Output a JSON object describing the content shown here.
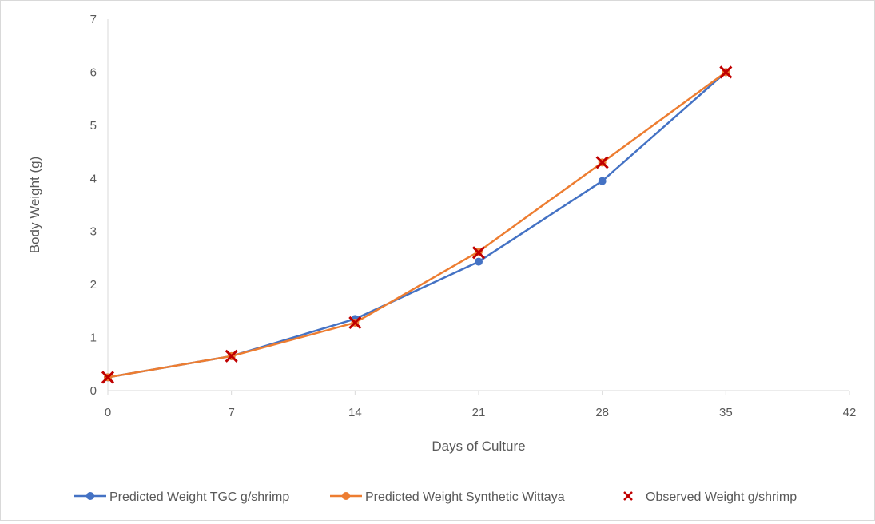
{
  "chart_data": {
    "type": "line",
    "xlabel": "Days of Culture",
    "ylabel": "Body Weight (g)",
    "xlim": [
      0,
      42
    ],
    "ylim": [
      0,
      7
    ],
    "x_ticks": [
      0,
      7,
      14,
      21,
      28,
      35,
      42
    ],
    "y_ticks": [
      0,
      1,
      2,
      3,
      4,
      5,
      6,
      7
    ],
    "grid": false,
    "legend_position": "bottom",
    "series": [
      {
        "name": "Predicted Weight TGC g/shrimp",
        "kind": "line-marker",
        "marker": "circle",
        "color": "#4472C4",
        "x": [
          0,
          7,
          14,
          21,
          28,
          35
        ],
        "y": [
          0.25,
          0.65,
          1.35,
          2.43,
          3.95,
          6.0
        ]
      },
      {
        "name": "Predicted Weight Synthetic Wittaya",
        "kind": "line-marker",
        "marker": "circle",
        "color": "#ED7D31",
        "x": [
          0,
          7,
          14,
          21,
          28,
          35
        ],
        "y": [
          0.25,
          0.65,
          1.28,
          2.62,
          4.3,
          6.0
        ]
      },
      {
        "name": "Observed Weight g/shrimp",
        "kind": "scatter",
        "marker": "x",
        "color": "#C00000",
        "x": [
          0,
          7,
          14,
          21,
          28,
          35
        ],
        "y": [
          0.25,
          0.65,
          1.28,
          2.6,
          4.3,
          6.0
        ]
      }
    ]
  }
}
